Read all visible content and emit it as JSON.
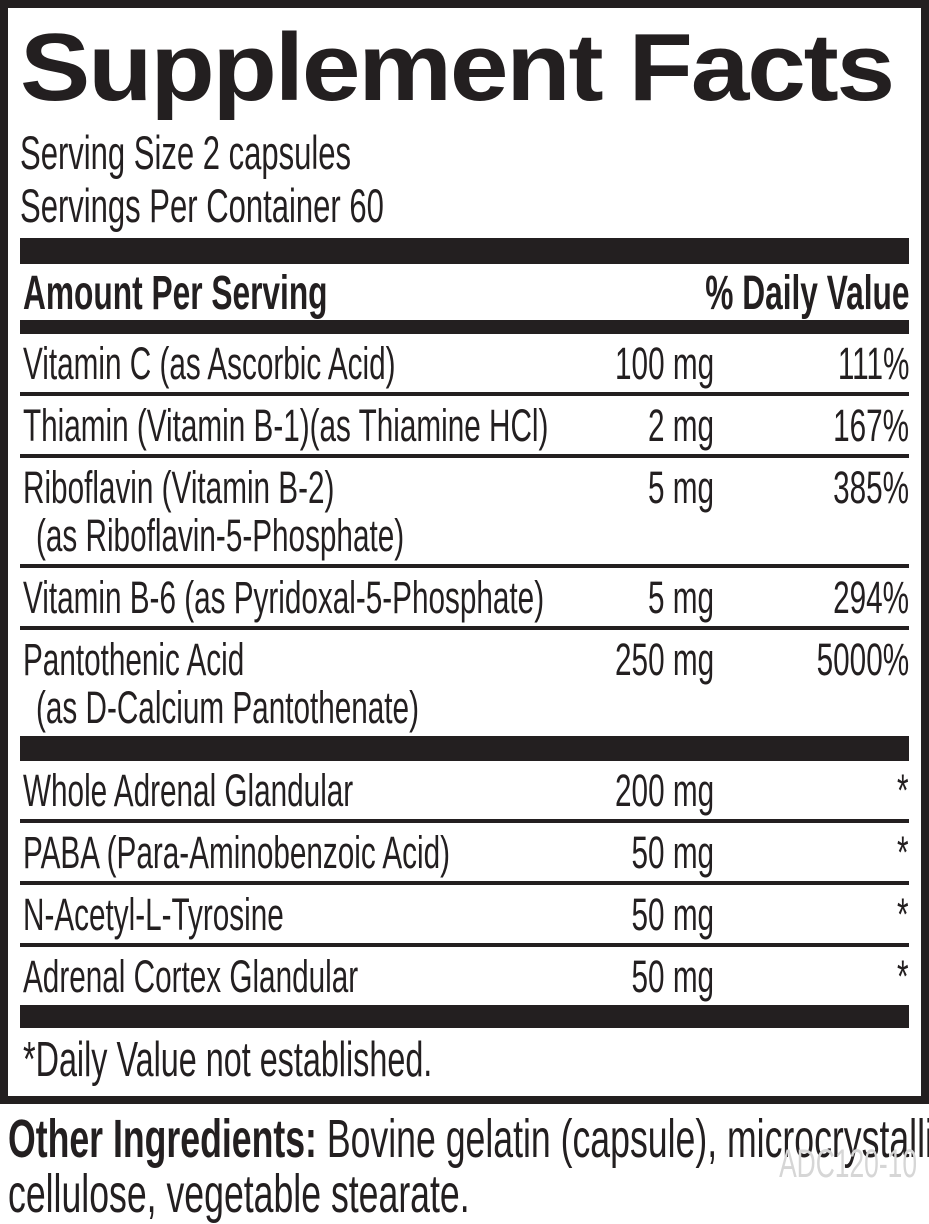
{
  "label": {
    "title": "Supplement Facts",
    "serving_size": "Serving Size 2 capsules",
    "servings_per_container": "Servings Per Container 60",
    "header": {
      "amount": "Amount Per Serving",
      "daily_value": "% Daily Value"
    },
    "rows": [
      {
        "name": "Vitamin C (as Ascorbic Acid)",
        "amount": "100 mg",
        "dv": "111%"
      },
      {
        "name": "Thiamin (Vitamin B-1)(as Thiamine HCl)",
        "amount": "2 mg",
        "dv": "167%"
      },
      {
        "name": "Riboflavin (Vitamin B-2)",
        "name2": "(as Riboflavin-5-Phosphate)",
        "amount": "5 mg",
        "dv": "385%"
      },
      {
        "name": "Vitamin B-6 (as Pyridoxal-5-Phosphate)",
        "amount": "5 mg",
        "dv": "294%"
      },
      {
        "name": "Pantothenic Acid",
        "name2": "(as D-Calcium Pantothenate)",
        "amount": "250 mg",
        "dv": "5000%"
      },
      {
        "name": "Whole Adrenal Glandular",
        "amount": "200 mg",
        "dv": "*"
      },
      {
        "name": "PABA (Para-Aminobenzoic Acid)",
        "amount": "50 mg",
        "dv": "*"
      },
      {
        "name": "N-Acetyl-L-Tyrosine",
        "amount": "50 mg",
        "dv": "*"
      },
      {
        "name": "Adrenal Cortex Glandular",
        "amount": "50 mg",
        "dv": "*"
      }
    ],
    "footnote": "*Daily Value not established.",
    "other_ingredients": {
      "label": "Other Ingredients:",
      "line1": " Bovine gelatin (capsule), microcrystalline",
      "line2": "cellulose, vegetable stearate."
    },
    "product_code": "ADC120-10",
    "colors": {
      "ink": "#231f20",
      "background": "#ffffff",
      "product_code_gray": "#d6d6d6"
    }
  }
}
